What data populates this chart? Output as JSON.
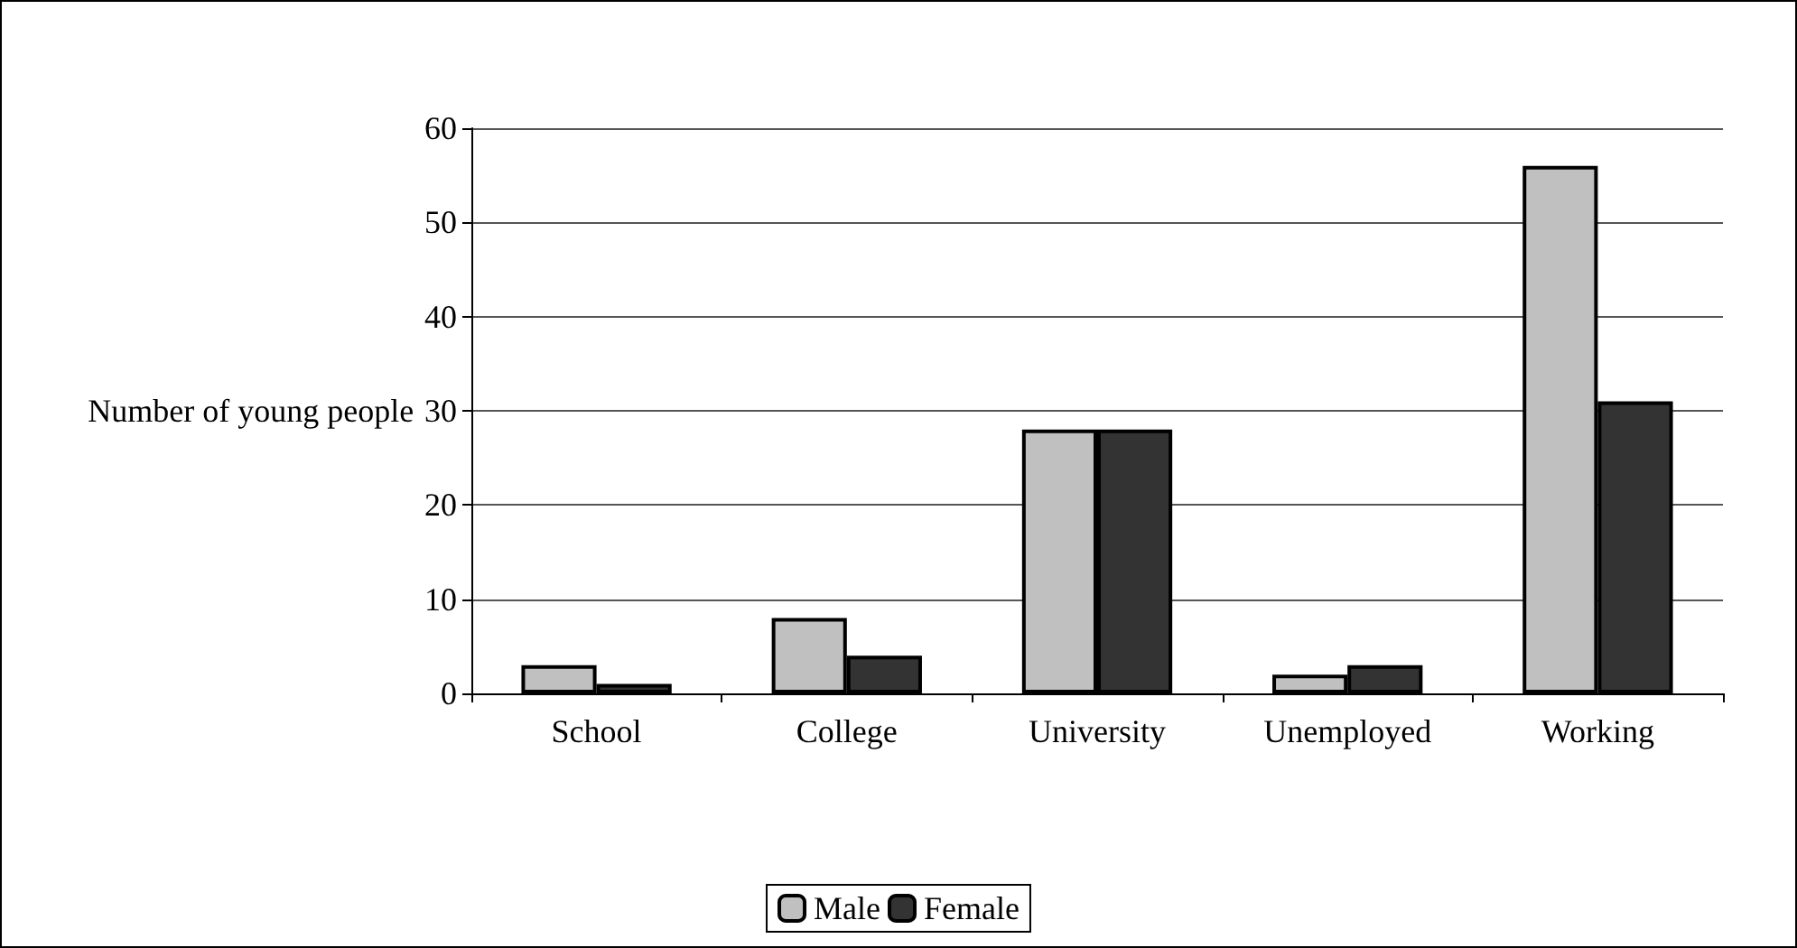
{
  "chart_data": {
    "type": "bar",
    "ylabel": "Number of young people",
    "categories": [
      "School",
      "College",
      "University",
      "Unemployed",
      "Working"
    ],
    "series": [
      {
        "name": "Male",
        "color": "#c0c0c0",
        "values": [
          3,
          8,
          28,
          2,
          56
        ]
      },
      {
        "name": "Female",
        "color": "#333333",
        "values": [
          1,
          4,
          28,
          3,
          31
        ]
      }
    ],
    "ylim": [
      0,
      60
    ],
    "yticks": [
      0,
      10,
      20,
      30,
      40,
      50,
      60
    ],
    "grid": "y",
    "legend": "bottom"
  }
}
